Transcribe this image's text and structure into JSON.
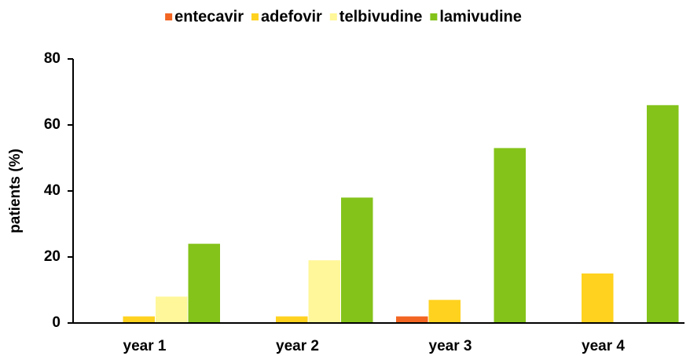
{
  "chart_data": {
    "type": "bar",
    "categories": [
      "year 1",
      "year 2",
      "year 3",
      "year 4"
    ],
    "series": [
      {
        "name": "entecavir",
        "color": "#f26522",
        "values": [
          0,
          0,
          2,
          0
        ]
      },
      {
        "name": "adefovir",
        "color": "#ffd21f",
        "values": [
          2,
          2,
          7,
          15
        ]
      },
      {
        "name": "telbivudine",
        "color": "#fff799",
        "values": [
          8,
          19,
          null,
          null
        ]
      },
      {
        "name": "lamivudine",
        "color": "#84c31a",
        "values": [
          24,
          38,
          53,
          66
        ]
      }
    ],
    "ylabel": "patients (%)",
    "ylim": [
      0,
      80
    ],
    "yticks": [
      0,
      20,
      40,
      60,
      80
    ],
    "legend": "top"
  }
}
